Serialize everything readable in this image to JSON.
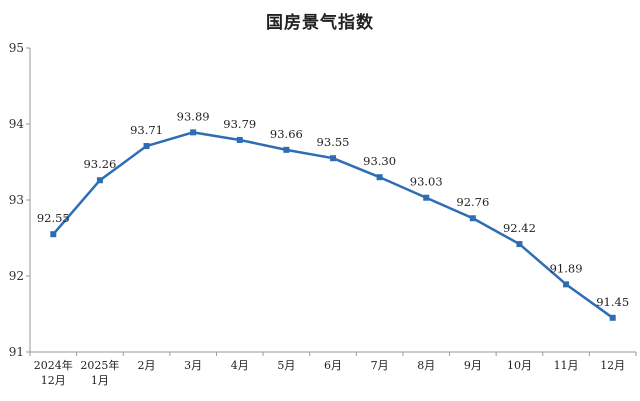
{
  "chart_data": {
    "type": "line",
    "title": "国房景气指数",
    "categories": [
      [
        "2024年",
        "12月"
      ],
      [
        "2025年",
        "1月"
      ],
      [
        "2月"
      ],
      [
        "3月"
      ],
      [
        "4月"
      ],
      [
        "5月"
      ],
      [
        "6月"
      ],
      [
        "7月"
      ],
      [
        "8月"
      ],
      [
        "9月"
      ],
      [
        "10月"
      ],
      [
        "11月"
      ],
      [
        "12月"
      ]
    ],
    "values": [
      92.55,
      93.26,
      93.71,
      93.89,
      93.79,
      93.66,
      93.55,
      93.3,
      93.03,
      92.76,
      92.42,
      91.89,
      91.45
    ],
    "value_labels": [
      "92.55",
      "93.26",
      "93.71",
      "93.89",
      "93.79",
      "93.66",
      "93.55",
      "93.30",
      "93.03",
      "92.76",
      "92.42",
      "91.89",
      "91.45"
    ],
    "ylim": [
      91,
      95
    ],
    "yticks": [
      91,
      92,
      93,
      94,
      95
    ],
    "grid": false,
    "line_color": "#2e6db4",
    "marker": "square"
  }
}
